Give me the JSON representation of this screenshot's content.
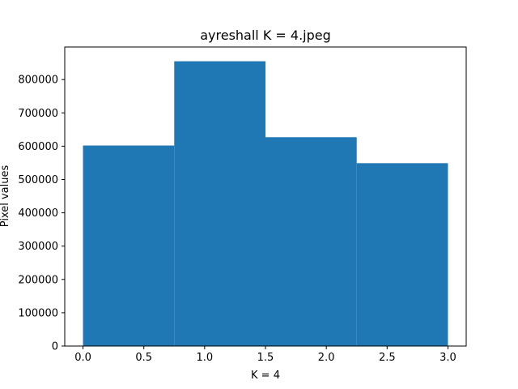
{
  "chart_data": {
    "type": "bar",
    "title": "ayreshall K = 4.jpeg",
    "xlabel": "K = 4",
    "ylabel": "Pixel values",
    "bins": [
      {
        "start": 0.0,
        "end": 0.75,
        "value": 602000
      },
      {
        "start": 0.75,
        "end": 1.5,
        "value": 855000
      },
      {
        "start": 1.5,
        "end": 2.25,
        "value": 627000
      },
      {
        "start": 2.25,
        "end": 3.0,
        "value": 549000
      }
    ],
    "xlim": [
      -0.15,
      3.15
    ],
    "ylim": [
      0,
      897750
    ],
    "xticks": [
      0.0,
      0.5,
      1.0,
      1.5,
      2.0,
      2.5,
      3.0
    ],
    "xtick_labels": [
      "0.0",
      "0.5",
      "1.0",
      "1.5",
      "2.0",
      "2.5",
      "3.0"
    ],
    "yticks": [
      0,
      100000,
      200000,
      300000,
      400000,
      500000,
      600000,
      700000,
      800000
    ],
    "ytick_labels": [
      "0",
      "100000",
      "200000",
      "300000",
      "400000",
      "500000",
      "600000",
      "700000",
      "800000"
    ],
    "bar_color": "#1f77b4",
    "grid": false,
    "legend": "none"
  }
}
